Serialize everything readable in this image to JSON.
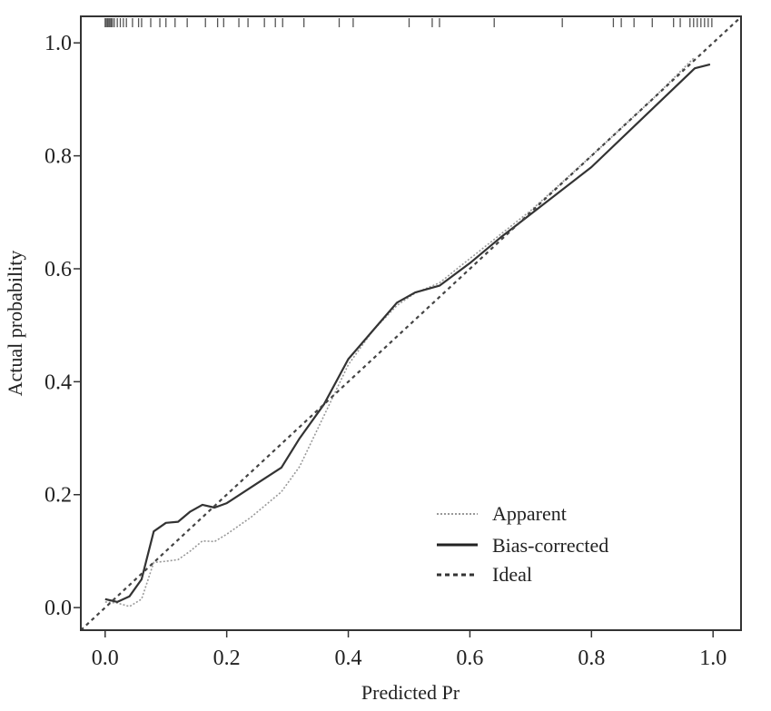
{
  "chart_data": {
    "type": "line",
    "title": "",
    "xlabel": "Predicted Pr",
    "ylabel": "Actual probability",
    "xlim": [
      -0.04,
      1.046
    ],
    "ylim": [
      -0.04,
      1.047
    ],
    "xticks": [
      "0.0",
      "0.2",
      "0.4",
      "0.6",
      "0.8",
      "1.0"
    ],
    "yticks": [
      "0.0",
      "0.2",
      "0.4",
      "0.6",
      "0.8",
      "1.0"
    ],
    "grid": false,
    "legend_position": "bottom-right",
    "series": [
      {
        "name": "Apparent",
        "style": "dotted",
        "color": "#999999",
        "x": [
          0.0,
          0.02,
          0.04,
          0.06,
          0.08,
          0.1,
          0.12,
          0.14,
          0.16,
          0.18,
          0.2,
          0.24,
          0.29,
          0.32,
          0.36,
          0.4,
          0.44,
          0.48,
          0.51,
          0.55,
          0.6,
          0.7,
          0.8,
          0.9,
          0.97
        ],
        "y": [
          0.01,
          0.008,
          0.002,
          0.015,
          0.08,
          0.082,
          0.085,
          0.1,
          0.118,
          0.117,
          0.13,
          0.16,
          0.205,
          0.25,
          0.34,
          0.43,
          0.49,
          0.535,
          0.557,
          0.575,
          0.618,
          0.703,
          0.8,
          0.9,
          0.975
        ]
      },
      {
        "name": "Bias-corrected",
        "style": "solid",
        "color": "#333333",
        "x": [
          0.0,
          0.02,
          0.04,
          0.06,
          0.08,
          0.1,
          0.12,
          0.14,
          0.16,
          0.18,
          0.2,
          0.25,
          0.29,
          0.32,
          0.36,
          0.4,
          0.44,
          0.48,
          0.51,
          0.55,
          0.6,
          0.65,
          0.8,
          0.97,
          0.995
        ],
        "y": [
          0.015,
          0.01,
          0.02,
          0.05,
          0.135,
          0.15,
          0.152,
          0.17,
          0.182,
          0.177,
          0.185,
          0.22,
          0.248,
          0.3,
          0.36,
          0.44,
          0.49,
          0.54,
          0.558,
          0.57,
          0.61,
          0.655,
          0.78,
          0.955,
          0.962
        ]
      },
      {
        "name": "Ideal",
        "style": "dashed",
        "color": "#444444",
        "x": [
          -0.04,
          1.046
        ],
        "y": [
          -0.04,
          1.046
        ]
      }
    ],
    "rug": [
      0,
      0.002,
      0.004,
      0.006,
      0.008,
      0.01,
      0.012,
      0.015,
      0.02,
      0.025,
      0.03,
      0.035,
      0.045,
      0.055,
      0.06,
      0.075,
      0.09,
      0.1,
      0.115,
      0.135,
      0.165,
      0.185,
      0.195,
      0.22,
      0.235,
      0.262,
      0.28,
      0.292,
      0.327,
      0.385,
      0.408,
      0.5,
      0.538,
      0.55,
      0.64,
      0.752,
      0.836,
      0.849,
      0.87,
      0.9,
      0.935,
      0.946,
      0.962,
      0.968,
      0.974,
      0.98,
      0.986,
      0.992,
      0.998
    ]
  }
}
